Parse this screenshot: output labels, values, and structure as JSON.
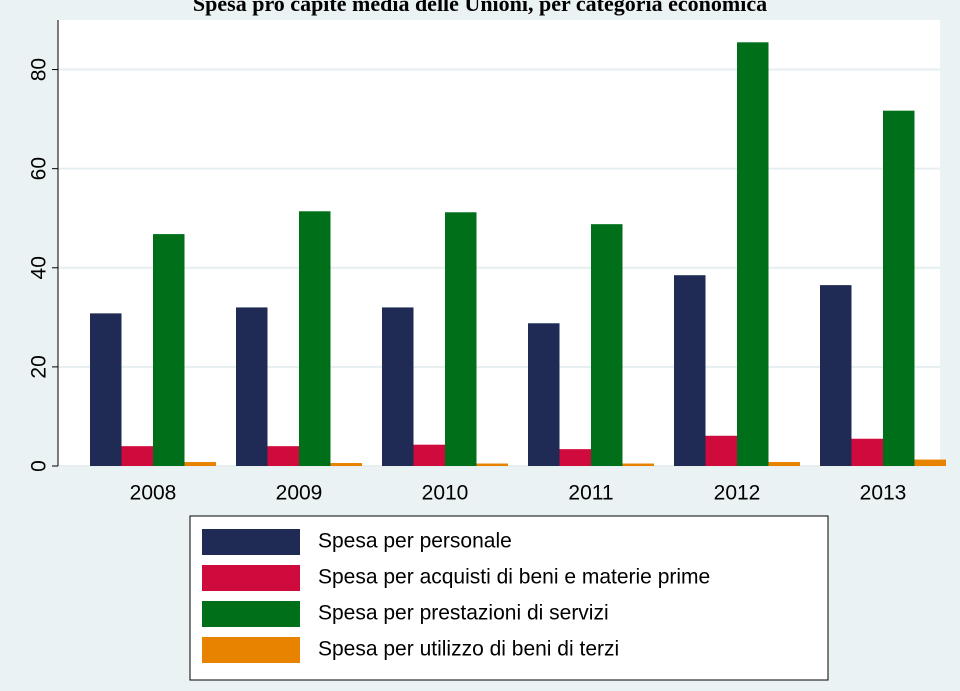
{
  "chart_data": {
    "type": "bar",
    "title": "Spesa pro capite media delle Unioni, per categoria economica",
    "categories": [
      "2008",
      "2009",
      "2010",
      "2011",
      "2012",
      "2013"
    ],
    "series": [
      {
        "name": "Spesa per personale",
        "color": "#1f2a55",
        "values": [
          30.8,
          32,
          32,
          28.8,
          38.5,
          36.5
        ]
      },
      {
        "name": "Spesa per acquisti di beni e materie prime",
        "color": "#cf0a3c",
        "values": [
          4.0,
          4.0,
          4.3,
          3.4,
          6.1,
          5.5
        ]
      },
      {
        "name": "Spesa per prestazioni di servizi",
        "color": "#006f1a",
        "values": [
          46.8,
          51.4,
          51.2,
          48.8,
          85.5,
          71.7
        ]
      },
      {
        "name": "Spesa per utilizzo di beni di terzi",
        "color": "#e88300",
        "values": [
          0.8,
          0.6,
          0.5,
          0.5,
          0.8,
          1.3
        ]
      }
    ],
    "ylim": [
      0,
      90
    ],
    "yticks": [
      0,
      20,
      40,
      60,
      80
    ],
    "grid": true,
    "legend": "bottom"
  }
}
